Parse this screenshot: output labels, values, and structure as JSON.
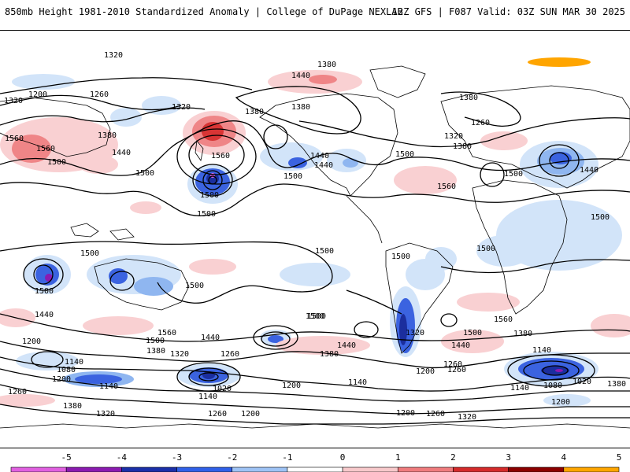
{
  "header": {
    "title_left": "850mb Height 1981-2010 Standardized Anomaly | College of DuPage NEXLAB",
    "title_right": "12Z GFS | F087 Valid: 03Z SUN MAR 30 2025"
  },
  "contour_labels": {
    "l1320_top": "1320",
    "l1380_top": "1380",
    "l1440_pac": "1440",
    "l1200_nw": "1200",
    "l1260_nw": "1260",
    "l1320_w": "1320",
    "l1380_np": "1380",
    "l1380_nam": "1380",
    "l1380_eu": "1380",
    "l1260_eu": "1260",
    "l1320_atl": "1320",
    "l1380_atl": "1380",
    "l1560_asia": "1560",
    "l1560_asia2": "1560",
    "l1500_asia": "1500",
    "l1380_asia": "1380",
    "l1440_asia": "1440",
    "l1500_wpac": "1500",
    "l1560_npac": "1560",
    "l1500_npac": "1500",
    "l1500_ca": "1500",
    "l1440_us": "1440",
    "l1440_us2": "1440",
    "l1500_us": "1500",
    "l1500_at": "1500",
    "l1560_atl": "1560",
    "l1500_eatl": "1500",
    "l1440_me": "1440",
    "l1500_af": "1500",
    "l1500_io": "1500",
    "l1500_eq": "1500",
    "l1500_aus": "1500",
    "l1500_sp": "1500",
    "l1500_sa": "1500",
    "l1500_sa2": "1500",
    "l1500_sp2": "1500",
    "l1500_io2": "1500",
    "l1500_swio": "1500",
    "l1440_swio": "1440",
    "l1200_swio": "1200",
    "l1560_sio": "1560",
    "l1500_sio": "1500",
    "l1380_sio": "1380",
    "l1320_sio": "1320",
    "l1140_sio": "1140",
    "l1080_sio": "1080",
    "l1200_sio": "1200",
    "l1260_sio": "1260",
    "l1380_sw": "1380",
    "l1320_sw": "1320",
    "l1440_tas": "1440",
    "l1260_tas": "1260",
    "l1140_tas": "1140",
    "l1020_tas": "1020",
    "l1260_s": "1260",
    "l1200_s": "1200",
    "l1140_s": "1140",
    "l1200_s2": "1200",
    "l1260_s2": "1260",
    "l1320_s2": "1320",
    "l1500_sp3": "1500",
    "l1440_sp3": "1440",
    "l1380_sp3": "1380",
    "l1320_sam": "1320",
    "l1260_sam": "1260",
    "l1500_sat": "1500",
    "l1440_sat": "1440",
    "l1560_sat": "1560",
    "l1380_sat": "1380",
    "l1140_sat": "1140",
    "l1080_sat": "1080",
    "l1020_sat": "1020",
    "l1200_sat": "1200",
    "l1140_sat2": "1140",
    "l1380_se": "1380"
  },
  "colorbar": {
    "ticks": [
      "-5",
      "-4",
      "-3",
      "-2",
      "-1",
      "0",
      "1",
      "2",
      "3",
      "4",
      "5"
    ],
    "colors": [
      "#e05fe0",
      "#8a1ab0",
      "#1a2fa8",
      "#3060e8",
      "#9ec3f5",
      "#ffffff",
      "#f7c9cb",
      "#ef7b7d",
      "#d42a2a",
      "#8b0000",
      "#ffa500"
    ]
  },
  "colors": {
    "neg1": "#d2e4f9",
    "neg2": "#8fb6f0",
    "neg3": "#3b63e0",
    "neg4": "#1b2e9e",
    "pos1": "#f9d0d2",
    "pos2": "#ef8587",
    "pos3": "#d83535",
    "land_outline": "#000000"
  }
}
